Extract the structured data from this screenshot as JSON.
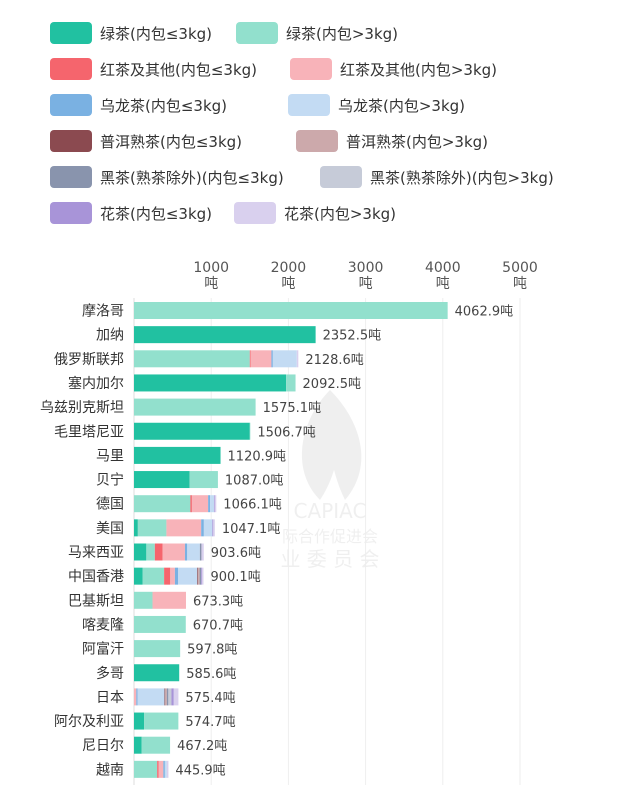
{
  "legend": [
    {
      "name": "绿茶(内包≤3kg)",
      "color": "#21c1a1"
    },
    {
      "name": "绿茶(内包>3kg)",
      "color": "#92e0cd"
    },
    {
      "name": "红茶及其他(内包≤3kg)",
      "color": "#f5656d"
    },
    {
      "name": "红茶及其他(内包>3kg)",
      "color": "#f8b3b9"
    },
    {
      "name": "乌龙茶(内包≤3kg)",
      "color": "#7ab1e2"
    },
    {
      "name": "乌龙茶(内包>3kg)",
      "color": "#c3dbf3"
    },
    {
      "name": "普洱熟茶(内包≤3kg)",
      "color": "#8b4a50"
    },
    {
      "name": "普洱熟茶(内包>3kg)",
      "color": "#cca9ab"
    },
    {
      "name": "黑茶(熟茶除外)(内包≤3kg)",
      "color": "#8994ad"
    },
    {
      "name": "黑茶(熟茶除外)(内包>3kg)",
      "color": "#c6cbd8"
    },
    {
      "name": "花茶(内包≤3kg)",
      "color": "#a894d8"
    },
    {
      "name": "花茶(内包>3kg)",
      "color": "#d9d0ee"
    }
  ],
  "watermark": {
    "brand": "CAPIAC",
    "line1": "际合作促进会",
    "line2": "业 委 员 会"
  },
  "chart_data": {
    "type": "bar",
    "orientation": "horizontal",
    "stacked": true,
    "value_suffix": "吨",
    "x_ticks": [
      {
        "value": 1000,
        "label": "1000",
        "unit": "吨"
      },
      {
        "value": 2000,
        "label": "2000",
        "unit": "吨"
      },
      {
        "value": 3000,
        "label": "3000",
        "unit": "吨"
      },
      {
        "value": 4000,
        "label": "4000",
        "unit": "吨"
      },
      {
        "value": 5000,
        "label": "5000",
        "unit": "吨"
      }
    ],
    "xlim": [
      0,
      5000
    ],
    "grid": true,
    "categories": [
      "摩洛哥",
      "加纳",
      "俄罗斯联邦",
      "塞内加尔",
      "乌兹别克斯坦",
      "毛里塔尼亚",
      "马里",
      "贝宁",
      "德国",
      "美国",
      "马来西亚",
      "中国香港",
      "巴基斯坦",
      "喀麦隆",
      "阿富汗",
      "多哥",
      "日本",
      "阿尔及利亚",
      "尼日尔",
      "越南"
    ],
    "totals": [
      4062.9,
      2352.5,
      2128.6,
      2092.5,
      1575.1,
      1506.7,
      1120.9,
      1087.0,
      1066.1,
      1047.1,
      903.6,
      900.1,
      673.3,
      670.7,
      597.8,
      585.6,
      575.4,
      574.7,
      467.2,
      445.9
    ],
    "total_labels": [
      "4062.9吨",
      "2352.5吨",
      "2128.6吨",
      "2092.5吨",
      "1575.1吨",
      "1506.7吨",
      "1120.9吨",
      "1087.0吨",
      "1066.1吨",
      "1047.1吨",
      "903.6吨",
      "900.1吨",
      "673.3吨",
      "670.7吨",
      "597.8吨",
      "585.6吨",
      "575.4吨",
      "574.7吨",
      "467.2吨",
      "445.9吨"
    ],
    "series": [
      {
        "name": "绿茶(内包≤3kg)",
        "values": [
          0,
          2352.5,
          0,
          1970,
          0,
          1500,
          1120.9,
          720,
          0,
          50,
          160,
          110,
          0,
          0,
          0,
          585.6,
          0,
          130,
          100,
          0
        ]
      },
      {
        "name": "绿茶(内包>3kg)",
        "values": [
          4062.9,
          0,
          1500,
          122.5,
          1575.1,
          6.7,
          0,
          367,
          730,
          370,
          110,
          280,
          240,
          670.7,
          597.8,
          0,
          0,
          444.7,
          367.2,
          300
        ]
      },
      {
        "name": "红茶及其他(内包≤3kg)",
        "values": [
          0,
          0,
          10,
          0,
          0,
          0,
          0,
          0,
          20,
          0,
          100,
          80,
          0,
          0,
          0,
          0,
          0,
          0,
          0,
          20
        ]
      },
      {
        "name": "红茶及其他(内包>3kg)",
        "values": [
          0,
          0,
          270,
          0,
          0,
          0,
          0,
          0,
          210,
          450,
          290,
          60,
          433.3,
          0,
          0,
          0,
          30,
          0,
          0,
          60
        ]
      },
      {
        "name": "乌龙茶(内包≤3kg)",
        "values": [
          0,
          0,
          18.6,
          0,
          0,
          0,
          0,
          0,
          26.1,
          35,
          30,
          40,
          0,
          0,
          0,
          0,
          15,
          0,
          0,
          20
        ]
      },
      {
        "name": "乌龙茶(内包>3kg)",
        "values": [
          0,
          0,
          310,
          0,
          0,
          0,
          0,
          0,
          50,
          110,
          163.6,
          250,
          0,
          0,
          0,
          0,
          350,
          0,
          0,
          25.9
        ]
      },
      {
        "name": "普洱熟茶(内包≤3kg)",
        "values": [
          0,
          0,
          0,
          0,
          0,
          0,
          0,
          0,
          0,
          0,
          0,
          10,
          0,
          0,
          0,
          0,
          10,
          0,
          0,
          0
        ]
      },
      {
        "name": "普洱熟茶(内包>3kg)",
        "values": [
          0,
          0,
          0,
          0,
          0,
          0,
          0,
          0,
          0,
          0,
          0,
          20,
          0,
          0,
          0,
          0,
          20,
          0,
          0,
          0
        ]
      },
      {
        "name": "黑茶(熟茶除外)(内包≤3kg)",
        "values": [
          0,
          0,
          0,
          0,
          0,
          0,
          0,
          0,
          0,
          0,
          20,
          20,
          0,
          0,
          0,
          0,
          20,
          0,
          0,
          0
        ]
      },
      {
        "name": "黑茶(熟茶除外)(内包>3kg)",
        "values": [
          0,
          0,
          0,
          0,
          0,
          0,
          0,
          0,
          0,
          0,
          0,
          0,
          0,
          0,
          0,
          0,
          40,
          0,
          0,
          0
        ]
      },
      {
        "name": "花茶(内包≤3kg)",
        "values": [
          0,
          0,
          0,
          0,
          0,
          0,
          0,
          0,
          10,
          12.1,
          0,
          10.1,
          0,
          0,
          0,
          0,
          30.4,
          0,
          0,
          0
        ]
      },
      {
        "name": "花茶(内包>3kg)",
        "values": [
          0,
          0,
          20,
          0,
          0,
          0,
          0,
          0,
          20,
          20,
          30,
          20,
          0,
          0,
          0,
          0,
          60,
          0,
          0,
          20
        ]
      }
    ]
  }
}
